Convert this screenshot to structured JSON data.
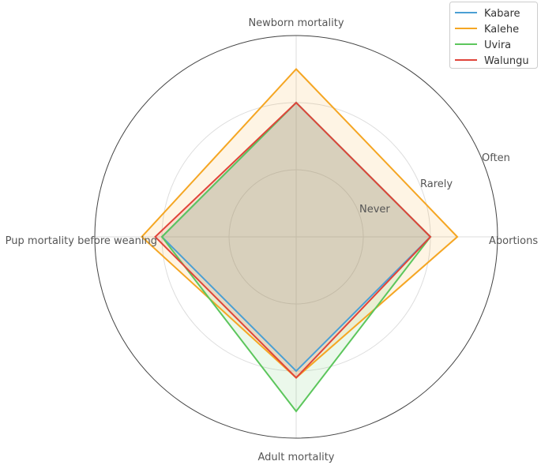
{
  "chart_data": {
    "type": "radar",
    "axes": [
      "Abortions",
      "Newborn mortality",
      "Pup mortality before weaning",
      "Adult mortality"
    ],
    "scale_labels": [
      "Never",
      "Rarely",
      "Often"
    ],
    "rmax": 3,
    "grid": true,
    "legend_position": "top-right",
    "series": [
      {
        "name": "Kabare",
        "color": "#4a9fd4",
        "values": [
          2.0,
          2.0,
          2.0,
          2.0
        ]
      },
      {
        "name": "Kalehe",
        "color": "#f5a623",
        "values": [
          2.4,
          2.5,
          2.3,
          2.1
        ]
      },
      {
        "name": "Uvira",
        "color": "#5cc65c",
        "values": [
          2.0,
          2.0,
          2.0,
          2.6
        ]
      },
      {
        "name": "Walungu",
        "color": "#e0443a",
        "values": [
          2.0,
          2.0,
          2.1,
          2.1
        ]
      }
    ]
  }
}
